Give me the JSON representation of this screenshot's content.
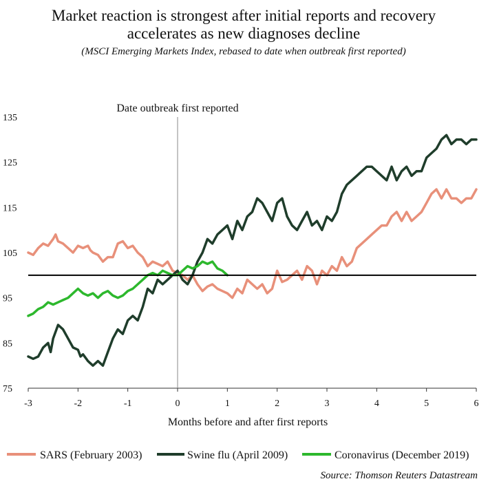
{
  "chart_data": {
    "type": "line",
    "title_line1": "Market reaction is strongest after initial reports and recovery",
    "title_line2": "accelerates as new diagnoses decline",
    "subtitle": "(MSCI Emerging Markets Index, rebased to date when outbreak first reported)",
    "xlabel": "Months before and after first reports",
    "ylabel": "",
    "xlim": [
      -3,
      6
    ],
    "ylim": [
      75,
      135
    ],
    "x_ticks": [
      "-3",
      "-2",
      "-1",
      "0",
      "1",
      "2",
      "3",
      "4",
      "5",
      "6"
    ],
    "y_ticks": [
      "75",
      "85",
      "95",
      "105",
      "115",
      "125",
      "135"
    ],
    "reference_line": 100,
    "annotation": "Date outbreak first reported",
    "source": "Source: Thomson Reuters Datastream",
    "colors": {
      "sars": "#e8907a",
      "swine": "#1f3d2b",
      "corona": "#2db82d"
    },
    "series": [
      {
        "name": "SARS (February 2003)",
        "x": [
          -3.0,
          -2.9,
          -2.8,
          -2.7,
          -2.6,
          -2.5,
          -2.45,
          -2.4,
          -2.3,
          -2.2,
          -2.1,
          -2.0,
          -1.9,
          -1.8,
          -1.75,
          -1.7,
          -1.6,
          -1.5,
          -1.4,
          -1.3,
          -1.2,
          -1.1,
          -1.0,
          -0.9,
          -0.8,
          -0.7,
          -0.6,
          -0.5,
          -0.4,
          -0.3,
          -0.2,
          -0.1,
          0.0,
          0.1,
          0.2,
          0.3,
          0.4,
          0.5,
          0.6,
          0.7,
          0.8,
          0.9,
          1.0,
          1.1,
          1.2,
          1.3,
          1.4,
          1.5,
          1.6,
          1.7,
          1.8,
          1.9,
          2.0,
          2.1,
          2.2,
          2.3,
          2.4,
          2.5,
          2.6,
          2.7,
          2.8,
          2.9,
          3.0,
          3.1,
          3.2,
          3.3,
          3.4,
          3.5,
          3.6,
          3.7,
          3.8,
          3.9,
          4.0,
          4.1,
          4.2,
          4.3,
          4.4,
          4.5,
          4.6,
          4.7,
          4.8,
          4.9,
          5.0,
          5.1,
          5.2,
          5.3,
          5.4,
          5.5,
          5.6,
          5.7,
          5.8,
          5.9,
          6.0
        ],
        "values": [
          105,
          104.5,
          106,
          107,
          106.5,
          108,
          109,
          107.5,
          107,
          106,
          105,
          106.5,
          106,
          106.5,
          105.5,
          105,
          104.5,
          103,
          104,
          104,
          107,
          107.5,
          106,
          106.5,
          105,
          104,
          102,
          103,
          102.5,
          102,
          103,
          101,
          100.5,
          100,
          99,
          100,
          98,
          96.5,
          97.5,
          98,
          97,
          96.5,
          96,
          95,
          97,
          96,
          99,
          98,
          97,
          98,
          96,
          97,
          101,
          98.5,
          99,
          100,
          101,
          99,
          102,
          101,
          98,
          101,
          100,
          102,
          101,
          104,
          102,
          103,
          106,
          107,
          108,
          109,
          110,
          111,
          111,
          113,
          114,
          112,
          114,
          112,
          113,
          114,
          116,
          118,
          119,
          117,
          119,
          117,
          117,
          116,
          117,
          117,
          119
        ]
      },
      {
        "name": "Swine flu (April 2009)",
        "x": [
          -3.0,
          -2.9,
          -2.8,
          -2.7,
          -2.6,
          -2.55,
          -2.5,
          -2.4,
          -2.3,
          -2.2,
          -2.1,
          -2.0,
          -1.95,
          -1.9,
          -1.8,
          -1.7,
          -1.6,
          -1.5,
          -1.4,
          -1.3,
          -1.2,
          -1.1,
          -1.0,
          -0.9,
          -0.8,
          -0.7,
          -0.6,
          -0.5,
          -0.4,
          -0.3,
          -0.2,
          -0.1,
          0.0,
          0.1,
          0.2,
          0.3,
          0.4,
          0.5,
          0.6,
          0.7,
          0.8,
          0.9,
          1.0,
          1.1,
          1.2,
          1.3,
          1.4,
          1.5,
          1.6,
          1.7,
          1.8,
          1.9,
          2.0,
          2.1,
          2.2,
          2.3,
          2.4,
          2.5,
          2.6,
          2.7,
          2.8,
          2.9,
          3.0,
          3.1,
          3.2,
          3.3,
          3.4,
          3.5,
          3.6,
          3.7,
          3.8,
          3.9,
          4.0,
          4.1,
          4.2,
          4.3,
          4.4,
          4.5,
          4.6,
          4.7,
          4.8,
          4.9,
          5.0,
          5.1,
          5.2,
          5.3,
          5.4,
          5.5,
          5.6,
          5.7,
          5.8,
          5.9,
          6.0
        ],
        "values": [
          82,
          81.5,
          82,
          84,
          85,
          83,
          86,
          89,
          88,
          86,
          84,
          83.5,
          82,
          82.5,
          81,
          80,
          81,
          80,
          83,
          86,
          88,
          87,
          90,
          91,
          90,
          93,
          97,
          96,
          99,
          98,
          99,
          100,
          101,
          99,
          98,
          100,
          103,
          105,
          108,
          107,
          109,
          110,
          111,
          108,
          112,
          110,
          113,
          114,
          117,
          116,
          114,
          112,
          116,
          117,
          113,
          111,
          110,
          112,
          114,
          111,
          112,
          110,
          113,
          112,
          114,
          118,
          120,
          121,
          122,
          123,
          124,
          124,
          123,
          122,
          121,
          124,
          121,
          123,
          124,
          122,
          123,
          123,
          126,
          127,
          128,
          130,
          131,
          129,
          130,
          130,
          129,
          130,
          130
        ]
      },
      {
        "name": "Coronavirus (December 2019)",
        "x": [
          -3.0,
          -2.9,
          -2.8,
          -2.7,
          -2.6,
          -2.5,
          -2.4,
          -2.3,
          -2.2,
          -2.1,
          -2.0,
          -1.9,
          -1.8,
          -1.7,
          -1.6,
          -1.5,
          -1.4,
          -1.3,
          -1.2,
          -1.1,
          -1.0,
          -0.9,
          -0.8,
          -0.7,
          -0.6,
          -0.5,
          -0.4,
          -0.3,
          -0.2,
          -0.1,
          0.0,
          0.1,
          0.2,
          0.3,
          0.4,
          0.5,
          0.6,
          0.7,
          0.8,
          0.9,
          1.0
        ],
        "values": [
          91,
          91.5,
          92.5,
          93,
          94,
          93.5,
          94,
          94.5,
          95,
          96,
          97,
          96,
          95.5,
          96,
          95,
          96,
          96.5,
          95.5,
          95,
          95.5,
          96.5,
          97,
          98,
          99,
          100,
          100.5,
          100,
          101,
          100.5,
          100,
          100,
          101,
          102,
          101.5,
          102,
          103,
          102.5,
          103,
          101.5,
          101,
          100
        ]
      }
    ]
  }
}
